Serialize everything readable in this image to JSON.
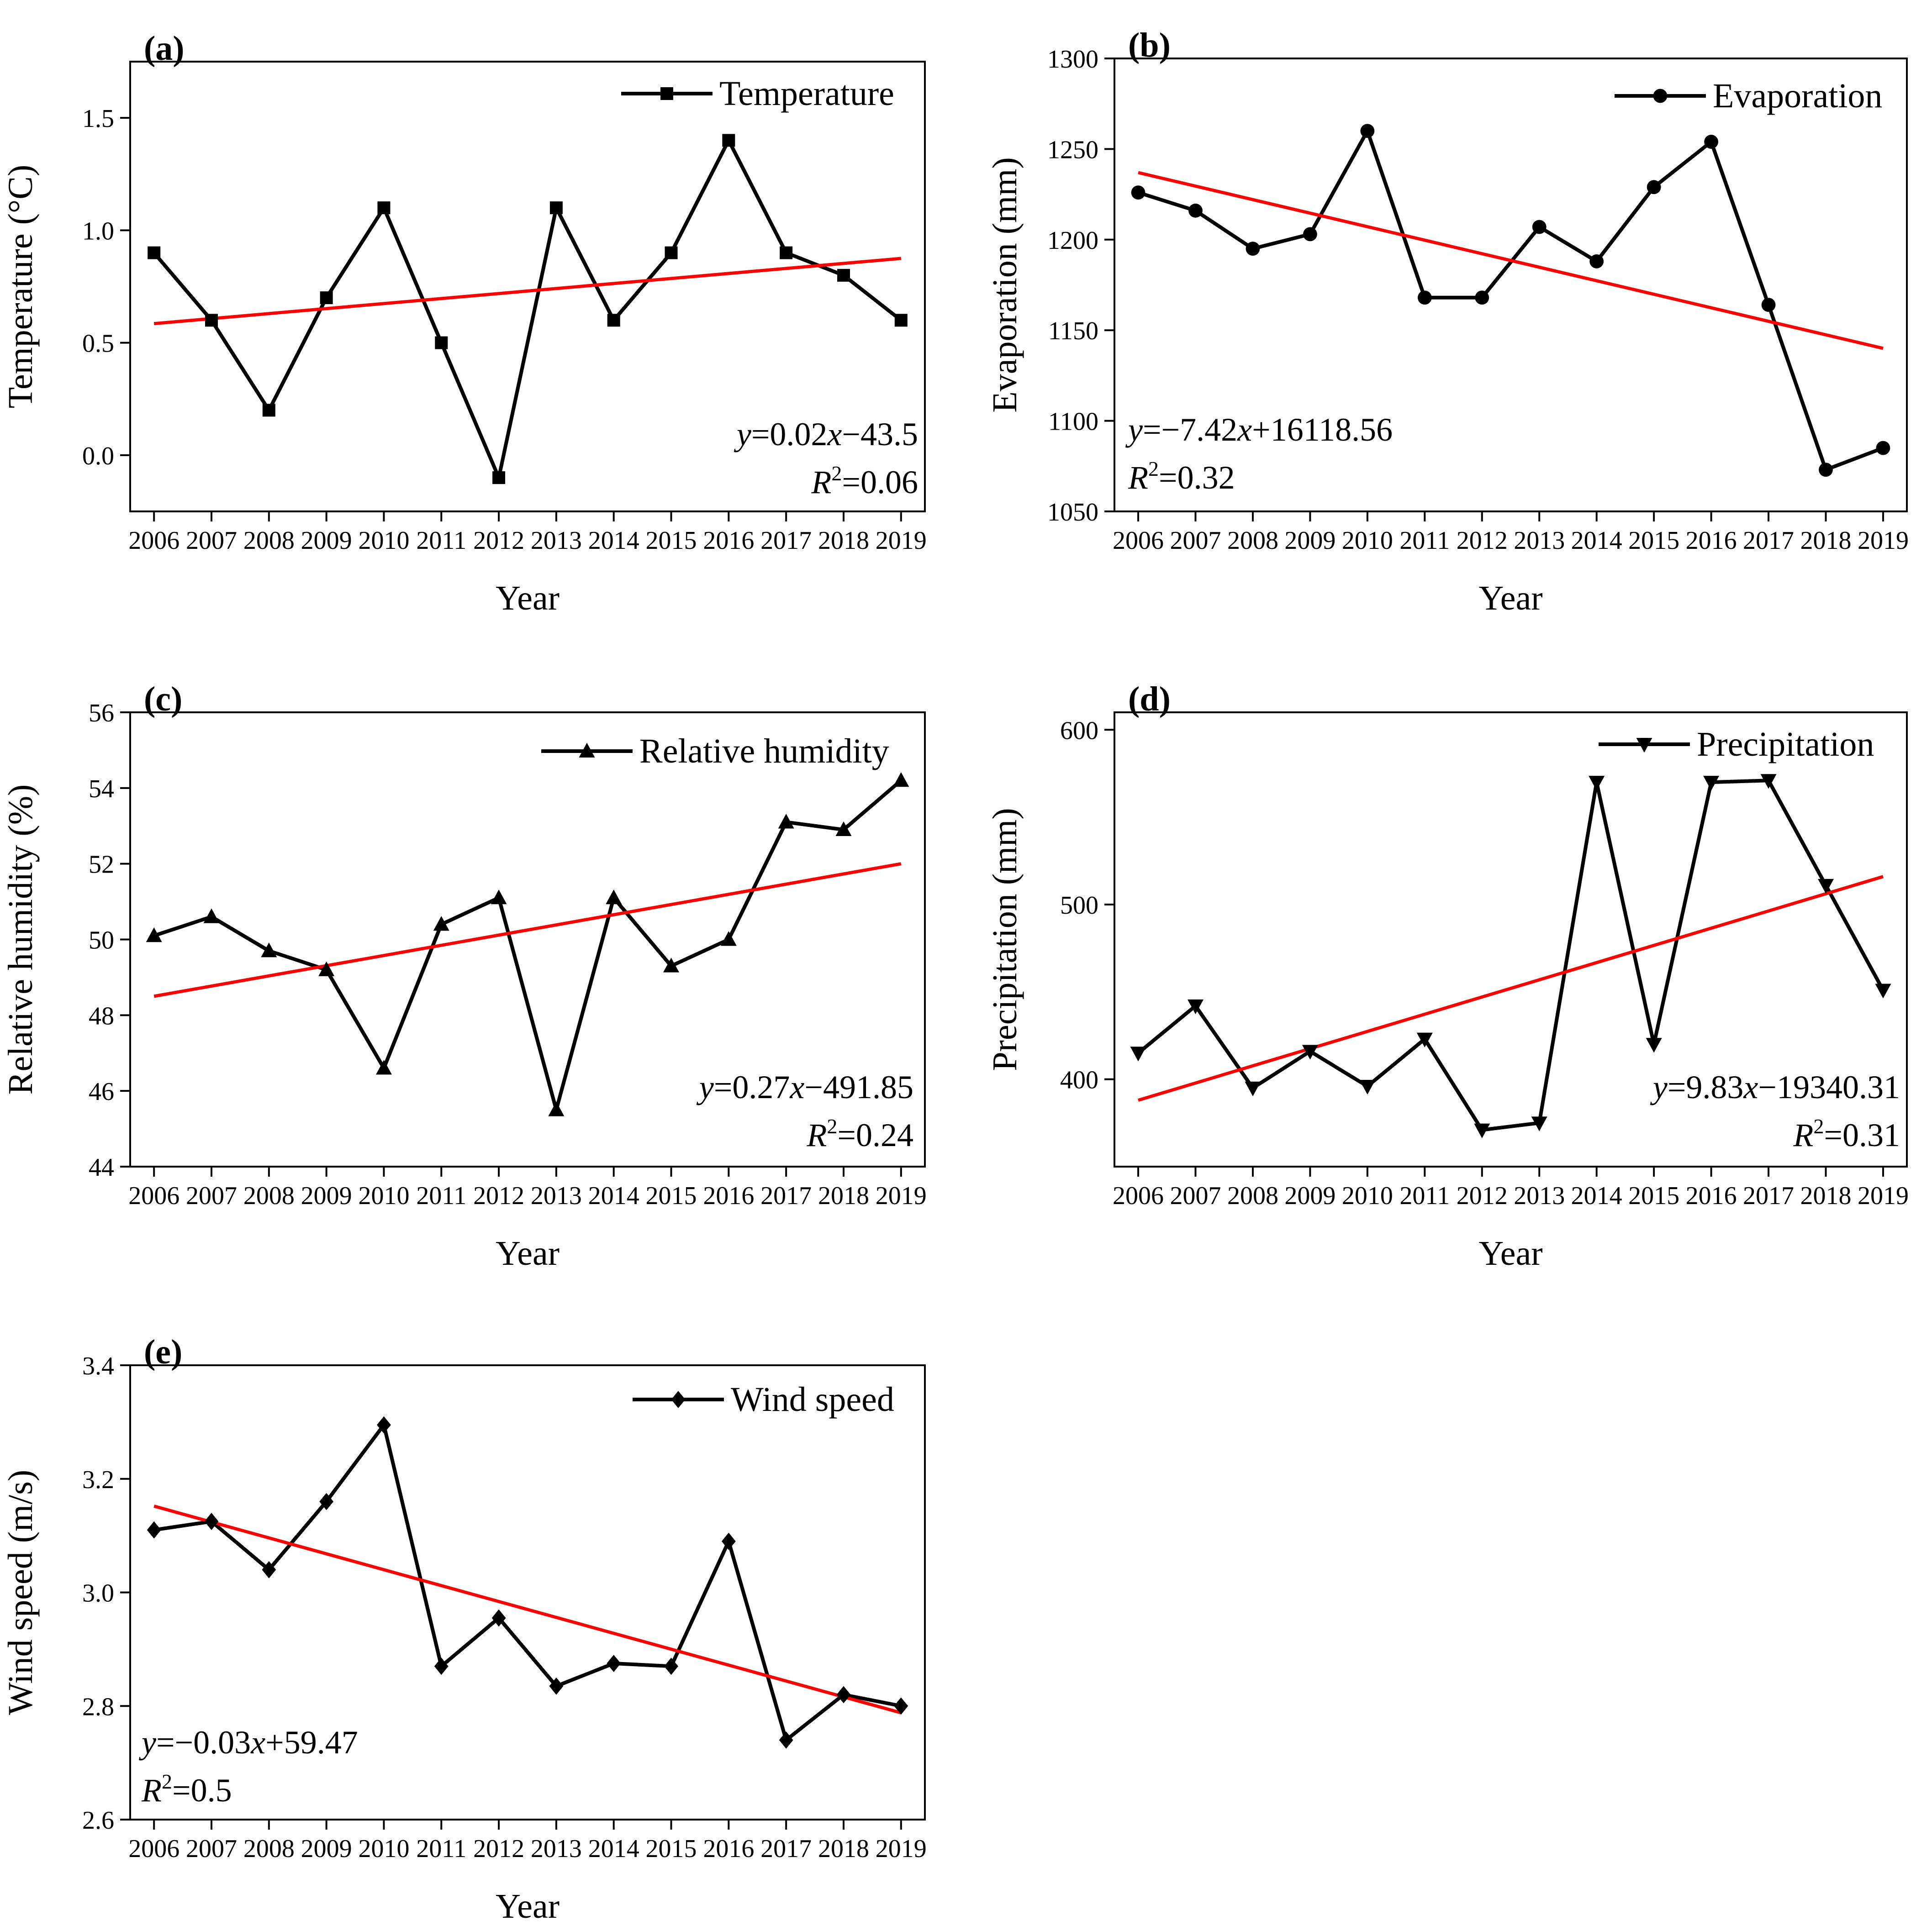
{
  "chart_data": [
    {
      "id": "a",
      "type": "line",
      "panel_label": "(a)",
      "xlabel": "Year",
      "ylabel": "Temperature (°C)",
      "x": [
        2006,
        2007,
        2008,
        2009,
        2010,
        2011,
        2012,
        2013,
        2014,
        2015,
        2016,
        2017,
        2018,
        2019
      ],
      "x_tick_labels": [
        "2006",
        "2007",
        "2008",
        "2009",
        "2010",
        "2011",
        "2012",
        "2013",
        "2014",
        "2015",
        "2016",
        "2017",
        "2018",
        "2019"
      ],
      "ylim": [
        -0.25,
        1.75
      ],
      "y_ticks": [
        0.0,
        0.5,
        1.0,
        1.5
      ],
      "y_tick_labels": [
        "0.0",
        "0.5",
        "1.0",
        "1.5"
      ],
      "series": [
        {
          "name": "Temperature",
          "marker": "square",
          "color": "#000000",
          "values": [
            0.9,
            0.6,
            0.2,
            0.7,
            1.1,
            0.5,
            -0.1,
            1.1,
            0.6,
            0.9,
            1.4,
            0.9,
            0.8,
            0.6
          ]
        }
      ],
      "trend": {
        "color": "#ff0000",
        "start": 0.585,
        "end": 0.875
      },
      "legend": {
        "label": "Temperature",
        "position": "top-right"
      },
      "equation": {
        "position": "bottom-right",
        "y_prefix": "y",
        "eq_body": "=0.02",
        "x_var": "x",
        "eq_tail": "−43.5",
        "r_var": "R",
        "r_sup": "2",
        "r_value": "=0.06"
      }
    },
    {
      "id": "b",
      "type": "line",
      "panel_label": "(b)",
      "xlabel": "Year",
      "ylabel": "Evaporation (mm)",
      "x": [
        2006,
        2007,
        2008,
        2009,
        2010,
        2011,
        2012,
        2013,
        2014,
        2015,
        2016,
        2017,
        2018,
        2019
      ],
      "x_tick_labels": [
        "2006",
        "2007",
        "2008",
        "2009",
        "2010",
        "2011",
        "2012",
        "2013",
        "2014",
        "2015",
        "2016",
        "2017",
        "2018",
        "2019"
      ],
      "ylim": [
        1050,
        1300
      ],
      "y_ticks": [
        1050,
        1100,
        1150,
        1200,
        1250,
        1300
      ],
      "y_tick_labels": [
        "1050",
        "1100",
        "1150",
        "1200",
        "1250",
        "1300"
      ],
      "series": [
        {
          "name": "Evaporation",
          "marker": "circle",
          "color": "#000000",
          "values": [
            1226,
            1216,
            1195,
            1203,
            1260,
            1168,
            1168,
            1207,
            1188,
            1229,
            1254,
            1164,
            1073,
            1085
          ]
        }
      ],
      "trend": {
        "color": "#ff0000",
        "start": 1237,
        "end": 1140
      },
      "legend": {
        "label": "Evaporation",
        "position": "top-right"
      },
      "equation": {
        "position": "bottom-left",
        "y_prefix": "y",
        "eq_body": "=−7.42",
        "x_var": "x",
        "eq_tail": "+16118.56",
        "r_var": "R",
        "r_sup": "2",
        "r_value": "=0.32"
      }
    },
    {
      "id": "c",
      "type": "line",
      "panel_label": "(c)",
      "xlabel": "Year",
      "ylabel": "Relative humidity (%)",
      "x": [
        2006,
        2007,
        2008,
        2009,
        2010,
        2011,
        2012,
        2013,
        2014,
        2015,
        2016,
        2017,
        2018,
        2019
      ],
      "x_tick_labels": [
        "2006",
        "2007",
        "2008",
        "2009",
        "2010",
        "2011",
        "2012",
        "2013",
        "2014",
        "2015",
        "2016",
        "2017",
        "2018",
        "2019"
      ],
      "ylim": [
        44,
        56
      ],
      "y_ticks": [
        44,
        46,
        48,
        50,
        52,
        54,
        56
      ],
      "y_tick_labels": [
        "44",
        "46",
        "48",
        "50",
        "52",
        "54",
        "56"
      ],
      "series": [
        {
          "name": "Relative humidity",
          "marker": "triangle-up",
          "color": "#000000",
          "values": [
            50.1,
            50.6,
            49.7,
            49.2,
            46.6,
            50.4,
            51.1,
            45.5,
            51.1,
            49.3,
            50.0,
            53.1,
            52.9,
            54.2
          ]
        }
      ],
      "trend": {
        "color": "#ff0000",
        "start": 48.5,
        "end": 52.0
      },
      "legend": {
        "label": "Relative humidity",
        "position": "top-right"
      },
      "equation": {
        "position": "bottom-right",
        "y_prefix": "y",
        "eq_body": "=0.27",
        "x_var": "x",
        "eq_tail": "−491.85",
        "r_var": "R",
        "r_sup": "2",
        "r_value": "=0.24"
      }
    },
    {
      "id": "d",
      "type": "line",
      "panel_label": "(d)",
      "xlabel": "Year",
      "ylabel": "Precipitation (mm)",
      "x": [
        2006,
        2007,
        2008,
        2009,
        2010,
        2011,
        2012,
        2013,
        2014,
        2015,
        2016,
        2017,
        2018,
        2019
      ],
      "x_tick_labels": [
        "2006",
        "2007",
        "2008",
        "2009",
        "2010",
        "2011",
        "2012",
        "2013",
        "2014",
        "2015",
        "2016",
        "2017",
        "2018",
        "2019"
      ],
      "ylim": [
        350,
        610
      ],
      "y_ticks": [
        400,
        500,
        600
      ],
      "y_tick_labels": [
        "400",
        "500",
        "600"
      ],
      "series": [
        {
          "name": "Precipitation",
          "marker": "triangle-down",
          "color": "#000000",
          "values": [
            415,
            442,
            395,
            416,
            396,
            423,
            371,
            375,
            570,
            420,
            570,
            571,
            511,
            451
          ]
        }
      ],
      "trend": {
        "color": "#ff0000",
        "start": 388,
        "end": 516
      },
      "legend": {
        "label": "Precipitation",
        "position": "top-right"
      },
      "equation": {
        "position": "bottom-right",
        "y_prefix": "y",
        "eq_body": "=9.83",
        "x_var": "x",
        "eq_tail": "−19340.31",
        "r_var": "R",
        "r_sup": "2",
        "r_value": "=0.31"
      }
    },
    {
      "id": "e",
      "type": "line",
      "panel_label": "(e)",
      "xlabel": "Year",
      "ylabel": "Wind speed (m/s)",
      "x": [
        2006,
        2007,
        2008,
        2009,
        2010,
        2011,
        2012,
        2013,
        2014,
        2015,
        2016,
        2017,
        2018,
        2019
      ],
      "x_tick_labels": [
        "2006",
        "2007",
        "2008",
        "2009",
        "2010",
        "2011",
        "2012",
        "2013",
        "2014",
        "2015",
        "2016",
        "2017",
        "2018",
        "2019"
      ],
      "ylim": [
        2.6,
        3.4
      ],
      "y_ticks": [
        2.6,
        2.8,
        3.0,
        3.2,
        3.4
      ],
      "y_tick_labels": [
        "2.6",
        "2.8",
        "3.0",
        "3.2",
        "3.4"
      ],
      "series": [
        {
          "name": "Wind speed",
          "marker": "diamond",
          "color": "#000000",
          "values": [
            3.11,
            3.125,
            3.04,
            3.16,
            3.295,
            2.87,
            2.955,
            2.835,
            2.875,
            2.87,
            3.09,
            2.74,
            2.82,
            2.8
          ]
        }
      ],
      "trend": {
        "color": "#ff0000",
        "start": 3.152,
        "end": 2.788
      },
      "legend": {
        "label": "Wind speed",
        "position": "top-right"
      },
      "equation": {
        "position": "bottom-left",
        "y_prefix": "y",
        "eq_body": "=−0.03",
        "x_var": "x",
        "eq_tail": "+59.47",
        "r_var": "R",
        "r_sup": "2",
        "r_value": "=0.5"
      }
    }
  ]
}
